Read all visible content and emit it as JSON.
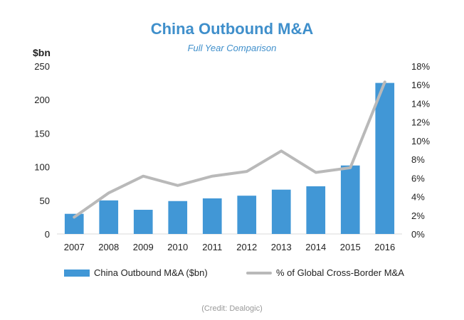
{
  "chart_data": {
    "type": "bar",
    "title": "China Outbound M&A",
    "subtitle": "Full Year Comparison",
    "ylabel_left": "$bn",
    "categories": [
      "2007",
      "2008",
      "2009",
      "2010",
      "2011",
      "2012",
      "2013",
      "2014",
      "2015",
      "2016"
    ],
    "series": [
      {
        "name": "China Outbound M&A ($bn)",
        "type": "bar",
        "axis": "left",
        "color": "#4197d6",
        "values": [
          30,
          50,
          36,
          49,
          53,
          57,
          66,
          71,
          102,
          225
        ]
      },
      {
        "name": "% of Global Cross-Border M&A",
        "type": "line",
        "axis": "right",
        "color": "#b9b9b9",
        "values": [
          1.8,
          4.4,
          6.2,
          5.2,
          6.2,
          6.7,
          8.9,
          6.6,
          7.1,
          16.3
        ]
      }
    ],
    "ylim_left": [
      0,
      250
    ],
    "yticks_left": [
      "0",
      "50",
      "100",
      "150",
      "200",
      "250"
    ],
    "ylim_right": [
      0,
      18
    ],
    "yticks_right": [
      "0%",
      "2%",
      "4%",
      "6%",
      "8%",
      "10%",
      "12%",
      "14%",
      "16%",
      "18%"
    ],
    "grid": false,
    "legend_position": "bottom"
  },
  "credit": "(Credit: Dealogic)"
}
